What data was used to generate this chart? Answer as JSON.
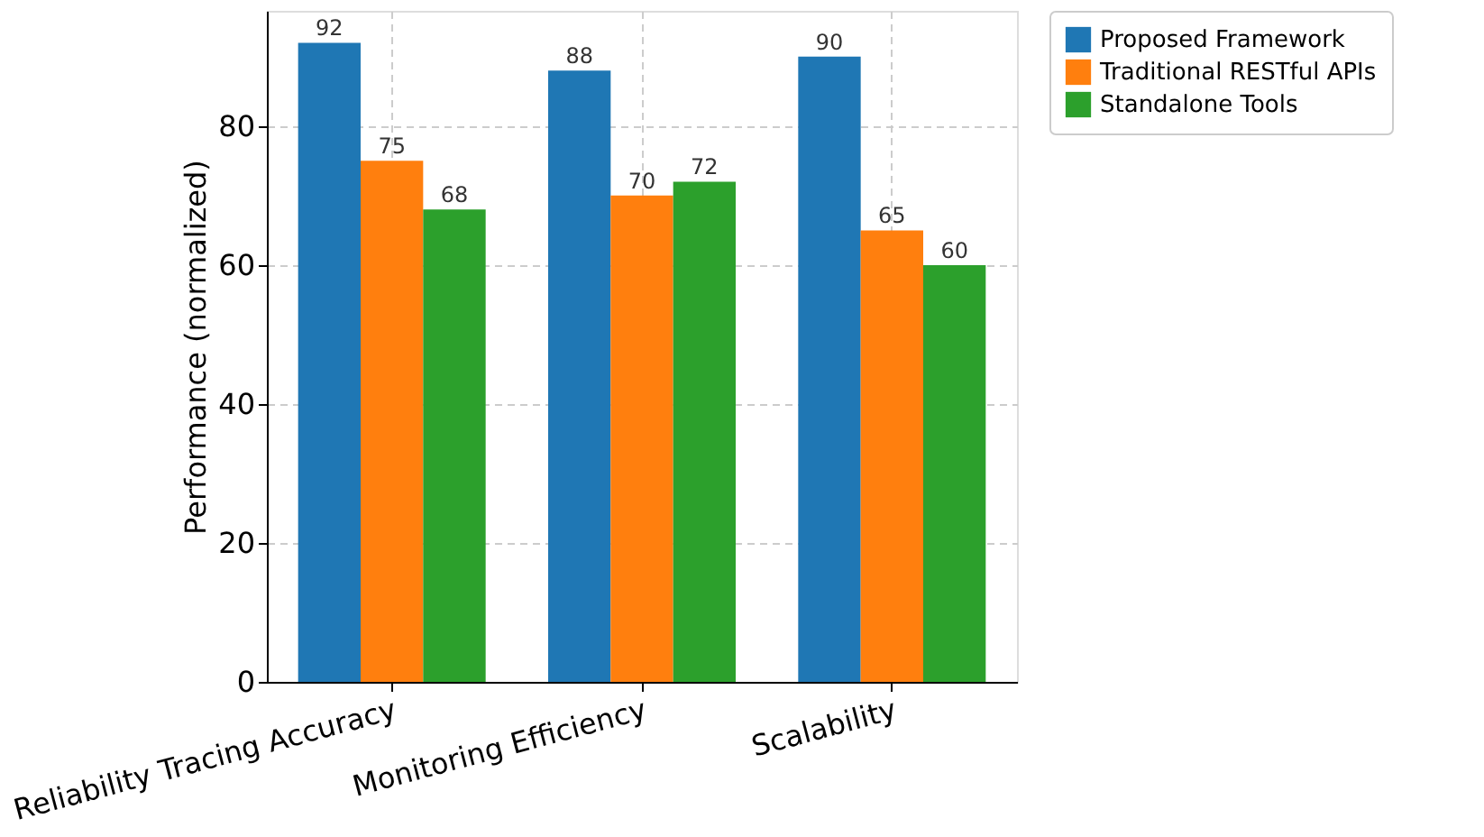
{
  "chart_data": {
    "type": "bar",
    "ylabel": "Performance (normalized)",
    "categories": [
      "Reliability Tracing Accuracy",
      "Monitoring Efficiency",
      "Scalability"
    ],
    "series": [
      {
        "name": "Proposed Framework",
        "color": "#1f77b4",
        "values": [
          92,
          88,
          90
        ]
      },
      {
        "name": "Traditional RESTful APIs",
        "color": "#ff7f0e",
        "values": [
          75,
          70,
          65
        ]
      },
      {
        "name": "Standalone Tools",
        "color": "#2ca02c",
        "values": [
          68,
          72,
          60
        ]
      }
    ],
    "ylim": [
      0,
      96.6
    ],
    "yticks": [
      0,
      20,
      40,
      60,
      80
    ],
    "grid": true,
    "legend": "top right",
    "data_labels": true
  }
}
